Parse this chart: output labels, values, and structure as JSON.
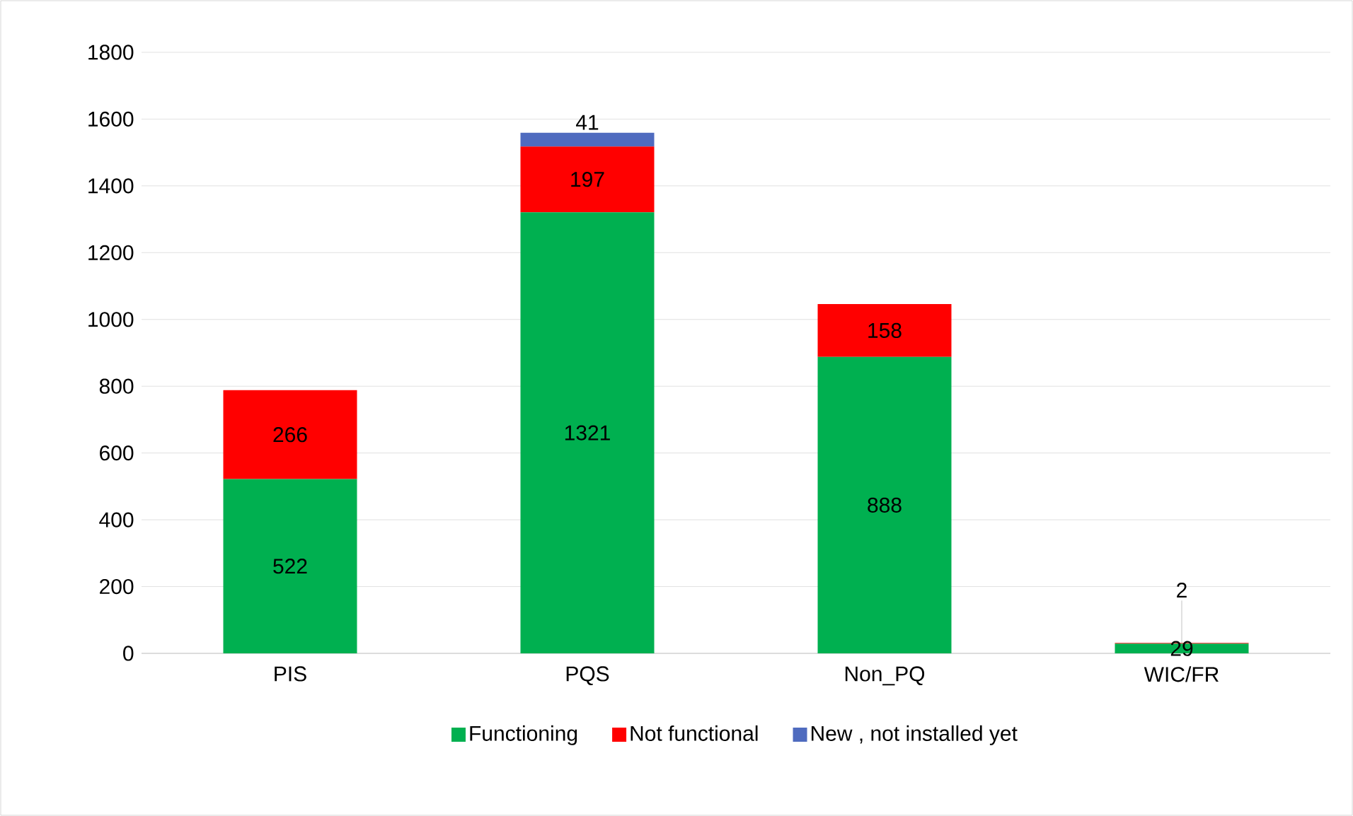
{
  "chart_data": {
    "type": "bar",
    "stacked": true,
    "categories": [
      "PIS",
      "PQS",
      "Non_PQ",
      "WIC/FR"
    ],
    "series": [
      {
        "name": "Functioning",
        "color": "#00b050",
        "values": [
          522,
          1321,
          888,
          29
        ]
      },
      {
        "name": "Not functional",
        "color": "#ff0000",
        "values": [
          266,
          197,
          158,
          2
        ]
      },
      {
        "name": "New , not installed yet",
        "color": "#4f6bbf",
        "values": [
          null,
          41,
          null,
          null
        ]
      }
    ],
    "ylim": [
      0,
      1800
    ],
    "yticks": [
      0,
      200,
      400,
      600,
      800,
      1000,
      1200,
      1400,
      1600,
      1800
    ],
    "grid": "y",
    "legend": "bottom",
    "data_labels": true
  }
}
